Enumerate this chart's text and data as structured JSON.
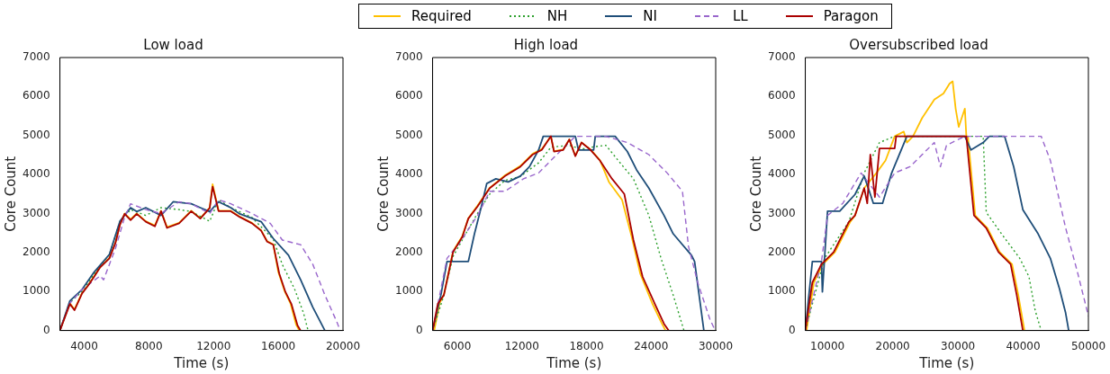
{
  "chart_data": [
    {
      "type": "line",
      "title": "Low load",
      "xlabel": "Time (s)",
      "ylabel": "Core Count",
      "xlim": [
        2500,
        20000
      ],
      "ylim": [
        0,
        7000
      ],
      "xticks": [
        4000,
        8000,
        12000,
        16000,
        20000
      ],
      "yticks": [
        0,
        1000,
        2000,
        3000,
        4000,
        5000,
        6000,
        7000
      ],
      "grid": false,
      "legend": "top",
      "series": [
        {
          "name": "Required",
          "color": "#ffc000",
          "line_style": "solid",
          "x": [
            2500,
            3119,
            3400,
            3870,
            4240,
            4620,
            4990,
            5560,
            5930,
            6210,
            6500,
            6870,
            7250,
            7810,
            8370,
            8750,
            9120,
            9870,
            10620,
            11180,
            11760,
            11940,
            12310,
            13060,
            13620,
            14370,
            14940,
            15310,
            15690,
            16000,
            16400,
            16750,
            17100,
            17300
          ],
          "values": [
            0,
            700,
            540,
            960,
            1160,
            1400,
            1630,
            1860,
            2250,
            2720,
            3000,
            2850,
            3000,
            2800,
            2690,
            3070,
            2650,
            2760,
            3070,
            2880,
            3150,
            3750,
            3070,
            3070,
            2920,
            2760,
            2570,
            2290,
            2210,
            1500,
            1000,
            700,
            150,
            0
          ]
        },
        {
          "name": "NH",
          "color": "#2ca02c",
          "line_style": "dotted",
          "x": [
            2500,
            3119,
            3870,
            4620,
            5560,
            6210,
            6870,
            7810,
            8750,
            9870,
            10620,
            11760,
            12310,
            13060,
            14370,
            15690,
            16250,
            17000,
            17560,
            17840
          ],
          "values": [
            0,
            720,
            1000,
            1450,
            1950,
            2800,
            3100,
            2950,
            3150,
            3100,
            3050,
            2800,
            3350,
            3150,
            2900,
            2340,
            1690,
            1070,
            450,
            0
          ]
        },
        {
          "name": "NI",
          "color": "#1f4e79",
          "line_style": "solid",
          "x": [
            2500,
            3119,
            3870,
            4620,
            5560,
            6210,
            6870,
            7250,
            7810,
            8750,
            9500,
            10620,
            11180,
            11760,
            12310,
            13060,
            13620,
            14940,
            15690,
            16630,
            17380,
            18130,
            18880
          ],
          "values": [
            0,
            760,
            1050,
            1500,
            1950,
            2800,
            3150,
            3050,
            3150,
            2950,
            3300,
            3250,
            3150,
            3050,
            3300,
            3150,
            2990,
            2790,
            2360,
            1930,
            1300,
            600,
            0
          ]
        },
        {
          "name": "LL",
          "color": "#9966cc",
          "line_style": "dashed",
          "x": [
            2500,
            3119,
            3870,
            4990,
            5200,
            5930,
            6500,
            6870,
            7810,
            8750,
            9870,
            10620,
            11760,
            12310,
            13060,
            14370,
            15500,
            16250,
            17380,
            18130,
            18880,
            19630,
            19820
          ],
          "values": [
            0,
            700,
            1050,
            1400,
            1300,
            2100,
            2900,
            3250,
            3100,
            3000,
            3300,
            3250,
            3000,
            3350,
            3250,
            3000,
            2750,
            2320,
            2200,
            1700,
            910,
            210,
            0
          ]
        },
        {
          "name": "Paragon",
          "color": "#aa0000",
          "line_style": "solid",
          "x": [
            2500,
            3119,
            3400,
            3870,
            4240,
            4620,
            4990,
            5560,
            5930,
            6210,
            6500,
            6870,
            7250,
            7810,
            8370,
            8750,
            9120,
            9870,
            10620,
            11180,
            11760,
            11940,
            12310,
            13060,
            13620,
            14370,
            14940,
            15310,
            15690,
            16060,
            16440,
            16810,
            17190,
            17380
          ],
          "values": [
            0,
            680,
            520,
            950,
            1150,
            1380,
            1620,
            1850,
            2240,
            2710,
            2990,
            2830,
            2990,
            2790,
            2670,
            3060,
            2630,
            2750,
            3060,
            2870,
            3140,
            3690,
            3060,
            3060,
            2910,
            2750,
            2560,
            2280,
            2200,
            1460,
            990,
            680,
            130,
            0
          ]
        }
      ]
    },
    {
      "type": "line",
      "title": "High load",
      "xlabel": "Time (s)",
      "ylabel": "Core Count",
      "xlim": [
        3700,
        30000
      ],
      "ylim": [
        0,
        7000
      ],
      "xticks": [
        6000,
        12000,
        18000,
        24000,
        30000
      ],
      "yticks": [
        0,
        1000,
        2000,
        3000,
        4000,
        5000,
        6000,
        7000
      ],
      "grid": false,
      "series": [
        {
          "name": "Required",
          "color": "#ffc000",
          "line_style": "solid",
          "x": [
            3850,
            4350,
            4750,
            5600,
            6460,
            7020,
            7870,
            9010,
            10430,
            11850,
            12990,
            13840,
            14690,
            14980,
            15830,
            16400,
            16960,
            17530,
            18380,
            19240,
            20100,
            21300,
            22200,
            23000,
            24100,
            25000,
            25340
          ],
          "values": [
            0,
            700,
            920,
            2030,
            2420,
            2880,
            3200,
            3660,
            3980,
            4220,
            4530,
            4650,
            4980,
            4600,
            4640,
            4900,
            4480,
            4820,
            4640,
            4370,
            3800,
            3350,
            2400,
            1450,
            700,
            180,
            0
          ]
        },
        {
          "name": "NH",
          "color": "#2ca02c",
          "line_style": "dotted",
          "x": [
            3700,
            4750,
            5600,
            7020,
            7870,
            9010,
            10430,
            11850,
            13550,
            14690,
            16400,
            17530,
            18380,
            19800,
            20940,
            22360,
            23790,
            24920,
            26050,
            27050
          ],
          "values": [
            0,
            900,
            1900,
            2600,
            3000,
            3500,
            3850,
            3950,
            4300,
            4700,
            4750,
            4650,
            4700,
            4750,
            4360,
            3890,
            2950,
            1850,
            910,
            0
          ]
        },
        {
          "name": "NI",
          "color": "#1f4e79",
          "line_style": "solid",
          "x": [
            3700,
            4470,
            5040,
            7020,
            7590,
            8160,
            8730,
            9580,
            10720,
            11850,
            12700,
            13550,
            13980,
            16960,
            17250,
            18660,
            18810,
            20660,
            21790,
            22650,
            23790,
            25200,
            26050,
            27750,
            28040,
            28900
          ],
          "values": [
            0,
            910,
            1770,
            1770,
            2480,
            3100,
            3770,
            3890,
            3810,
            3960,
            4200,
            4630,
            4980,
            4980,
            4630,
            4630,
            4980,
            4980,
            4590,
            4120,
            3650,
            2950,
            2480,
            1930,
            1770,
            0
          ]
        },
        {
          "name": "LL",
          "color": "#9966cc",
          "line_style": "dashed",
          "x": [
            3700,
            5040,
            6180,
            7870,
            9010,
            10430,
            12140,
            13550,
            14690,
            16960,
            19800,
            21790,
            23790,
            25490,
            26910,
            27470,
            28330,
            29460,
            29950
          ],
          "values": [
            0,
            1850,
            2240,
            2950,
            3570,
            3570,
            3890,
            4040,
            4360,
            4980,
            4980,
            4820,
            4510,
            4040,
            3570,
            2160,
            1230,
            290,
            0
          ]
        },
        {
          "name": "Paragon",
          "color": "#aa0000",
          "line_style": "solid",
          "x": [
            3700,
            4180,
            4750,
            5600,
            6460,
            7020,
            7870,
            9010,
            10430,
            11850,
            12990,
            13840,
            14690,
            14980,
            15830,
            16400,
            16960,
            17530,
            18380,
            19240,
            20370,
            21510,
            22360,
            23210,
            24350,
            25200,
            25630
          ],
          "values": [
            0,
            680,
            910,
            2010,
            2400,
            2870,
            3180,
            3650,
            3960,
            4200,
            4510,
            4630,
            4980,
            4590,
            4630,
            4900,
            4470,
            4820,
            4630,
            4360,
            3890,
            3500,
            2320,
            1380,
            680,
            170,
            0
          ]
        }
      ]
    },
    {
      "type": "line",
      "title": "Oversubscribed load",
      "xlabel": "Time (s)",
      "ylabel": "Core Count",
      "xlim": [
        6600,
        50000
      ],
      "ylim": [
        0,
        7000
      ],
      "xticks": [
        10000,
        20000,
        30000,
        40000,
        50000
      ],
      "yticks": [
        0,
        1000,
        2000,
        3000,
        4000,
        5000,
        6000,
        7000
      ],
      "grid": false,
      "series": [
        {
          "name": "Required",
          "color": "#ffc000",
          "line_style": "solid",
          "x": [
            6800,
            7900,
            9300,
            11150,
            13500,
            14220,
            15630,
            17500,
            18900,
            20300,
            21700,
            22170,
            23110,
            24510,
            26380,
            27780,
            28720,
            29190,
            29650,
            30120,
            31060,
            31290,
            31530,
            32650,
            34500,
            36400,
            38300,
            39250,
            40200
          ],
          "values": [
            0,
            1230,
            1700,
            2010,
            2790,
            2950,
            3650,
            4040,
            4360,
            4980,
            5100,
            4820,
            4980,
            5450,
            5920,
            6080,
            6330,
            6390,
            5690,
            5220,
            5690,
            4980,
            4980,
            2950,
            2630,
            2010,
            1700,
            910,
            0
          ]
        },
        {
          "name": "NH",
          "color": "#2ca02c",
          "line_style": "dotted",
          "x": [
            6600,
            9550,
            13290,
            15630,
            17970,
            20300,
            33870,
            34340,
            36680,
            39480,
            40890,
            41830,
            42760
          ],
          "values": [
            0,
            1850,
            2790,
            4040,
            4820,
            4980,
            4980,
            3030,
            2480,
            1850,
            1380,
            520,
            0
          ]
        },
        {
          "name": "NI",
          "color": "#1f4e79",
          "line_style": "solid",
          "x": [
            6600,
            7680,
            9080,
            9220,
            9550,
            10010,
            11880,
            14220,
            15630,
            17040,
            18440,
            19840,
            22170,
            31060,
            32000,
            33870,
            34810,
            37150,
            38550,
            39950,
            42290,
            44170,
            45570,
            46510,
            46980
          ],
          "values": [
            0,
            1770,
            1770,
            990,
            1850,
            3060,
            3060,
            3490,
            3960,
            3260,
            3260,
            4040,
            4980,
            4980,
            4630,
            4820,
            4980,
            4980,
            4200,
            3100,
            2480,
            1850,
            1070,
            450,
            0
          ]
        },
        {
          "name": "LL",
          "color": "#9966cc",
          "line_style": "dashed",
          "x": [
            6600,
            9080,
            10010,
            12350,
            15160,
            17970,
            20300,
            22640,
            24510,
            26380,
            27310,
            28250,
            31060,
            42760,
            44170,
            46510,
            48380,
            49780,
            50000
          ],
          "values": [
            0,
            1770,
            2950,
            3260,
            4040,
            3420,
            4040,
            4200,
            4510,
            4820,
            4200,
            4750,
            4980,
            4980,
            4360,
            2630,
            1460,
            520,
            370
          ]
        },
        {
          "name": "Paragon",
          "color": "#aa0000",
          "line_style": "solid",
          "x": [
            6600,
            7680,
            9080,
            10950,
            13290,
            14220,
            15630,
            16100,
            16570,
            17270,
            17970,
            20300,
            20530,
            31290,
            32460,
            34330,
            36210,
            38080,
            39010,
            39950
          ],
          "values": [
            0,
            1230,
            1700,
            2010,
            2790,
            2950,
            3650,
            3260,
            4510,
            3420,
            4670,
            4670,
            4980,
            4980,
            2950,
            2630,
            2010,
            1700,
            910,
            0
          ]
        }
      ]
    }
  ]
}
